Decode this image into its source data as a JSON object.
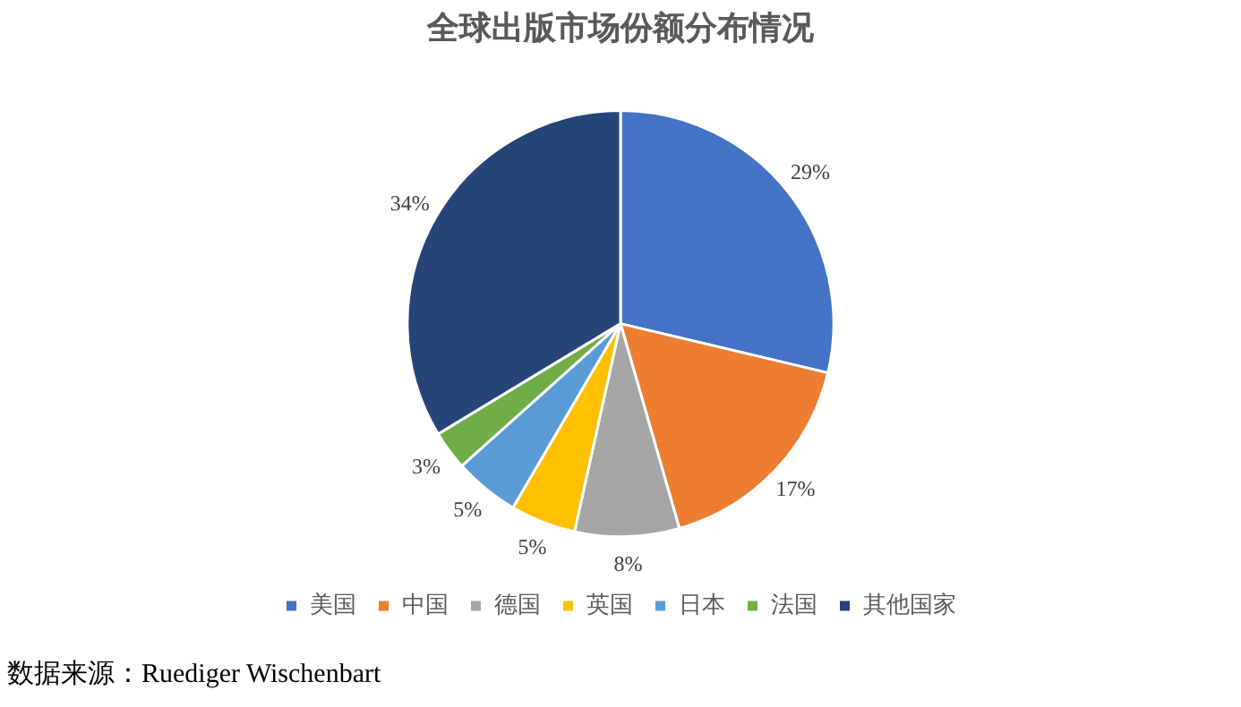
{
  "chart_data": {
    "type": "pie",
    "title": "全球出版市场份额分布情况",
    "categories": [
      "美国",
      "中国",
      "德国",
      "英国",
      "日本",
      "法国",
      "其他国家"
    ],
    "values": [
      29,
      17,
      8,
      5,
      5,
      3,
      34
    ],
    "value_labels": [
      "29%",
      "17%",
      "8%",
      "5%",
      "5%",
      "3%",
      "34%"
    ],
    "colors": [
      "#4472c4",
      "#ed7d31",
      "#a5a5a5",
      "#ffc000",
      "#5b9bd5",
      "#70ad47",
      "#264478"
    ],
    "legend": "bottom",
    "annotations": [
      "数据来源：Ruediger Wischenbart"
    ]
  }
}
